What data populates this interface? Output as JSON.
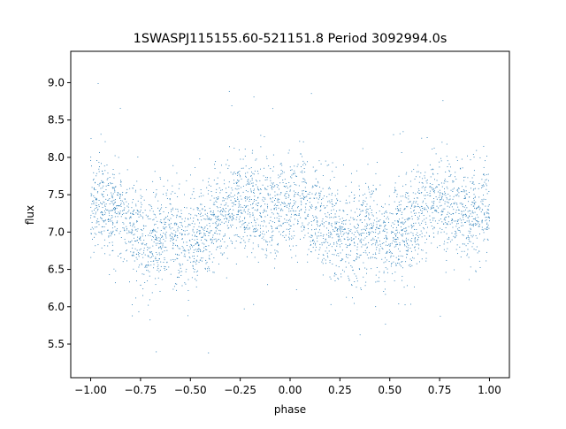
{
  "chart_data": {
    "type": "scatter",
    "title": "1SWASPJ115155.60-521151.8 Period 3092994.0s",
    "xlabel": "phase",
    "ylabel": "flux",
    "xlim": [
      -1.1,
      1.1
    ],
    "ylim": [
      5.05,
      9.42
    ],
    "x_ticks": [
      -1.0,
      -0.75,
      -0.5,
      -0.25,
      0.0,
      0.25,
      0.5,
      0.75,
      1.0
    ],
    "x_tick_labels": [
      "−1.00",
      "−0.75",
      "−0.50",
      "−0.25",
      "0.00",
      "0.25",
      "0.50",
      "0.75",
      "1.00"
    ],
    "y_ticks": [
      5.5,
      6.0,
      6.5,
      7.0,
      7.5,
      8.0,
      8.5,
      9.0
    ],
    "y_tick_labels": [
      "5.5",
      "6.0",
      "6.5",
      "7.0",
      "7.5",
      "8.0",
      "8.5",
      "9.0"
    ],
    "grid": false,
    "legend": "none",
    "marker_color": "#1f77b4",
    "series": [
      {
        "x": [
          -1.0,
          -0.95,
          -0.9,
          -0.85,
          -0.8,
          -0.75,
          -0.7,
          -0.65,
          -0.6,
          -0.55,
          -0.5,
          -0.45,
          -0.4,
          -0.35,
          -0.3,
          -0.25,
          -0.2,
          -0.15,
          -0.1,
          -0.05,
          0.0,
          0.05,
          0.1,
          0.15,
          0.2,
          0.25,
          0.3,
          0.35,
          0.4,
          0.45,
          0.5,
          0.55,
          0.6,
          0.65,
          0.7,
          0.75,
          0.8,
          0.85,
          0.9,
          0.95,
          1.0
        ],
        "y": [
          7.35,
          7.45,
          7.35,
          7.25,
          7.1,
          6.95,
          6.9,
          6.95,
          7.05,
          6.95,
          6.9,
          7.0,
          7.1,
          7.25,
          7.35,
          7.4,
          7.35,
          7.3,
          7.25,
          7.3,
          7.35,
          7.45,
          7.35,
          7.25,
          7.1,
          6.95,
          6.9,
          6.95,
          7.05,
          6.95,
          6.9,
          7.0,
          7.1,
          7.25,
          7.35,
          7.4,
          7.35,
          7.3,
          7.25,
          7.3,
          7.35
        ]
      }
    ]
  }
}
